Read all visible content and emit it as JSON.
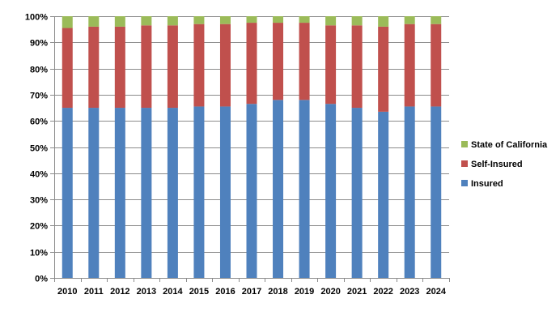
{
  "chart_data": {
    "type": "bar",
    "stacked": "percent",
    "categories": [
      "2010",
      "2011",
      "2012",
      "2013",
      "2014",
      "2015",
      "2016",
      "2017",
      "2018",
      "2019",
      "2020",
      "2021",
      "2022",
      "2023",
      "2024"
    ],
    "series": [
      {
        "name": "Insured",
        "color": "#4F81BD",
        "values": [
          65,
          65,
          65,
          65,
          65,
          65.5,
          65.5,
          66.5,
          68,
          68,
          66.5,
          65,
          63.5,
          65.5,
          65.5
        ]
      },
      {
        "name": "Self-Insured",
        "color": "#C0504D",
        "values": [
          30.5,
          31,
          31,
          31.5,
          31.5,
          31.5,
          31.5,
          31,
          29.5,
          29.5,
          30,
          31.5,
          32.5,
          31.5,
          31.5
        ]
      },
      {
        "name": "State of California",
        "color": "#9BBB59",
        "values": [
          4.5,
          4,
          4,
          3.5,
          3.5,
          3,
          3,
          2.5,
          2.5,
          2.5,
          3.5,
          3.5,
          4,
          3,
          3
        ]
      }
    ],
    "y_ticks": [
      "0%",
      "10%",
      "20%",
      "30%",
      "40%",
      "50%",
      "60%",
      "70%",
      "80%",
      "90%",
      "100%"
    ],
    "ylim": [
      0,
      100
    ],
    "grid": true,
    "legend_position": "right"
  }
}
